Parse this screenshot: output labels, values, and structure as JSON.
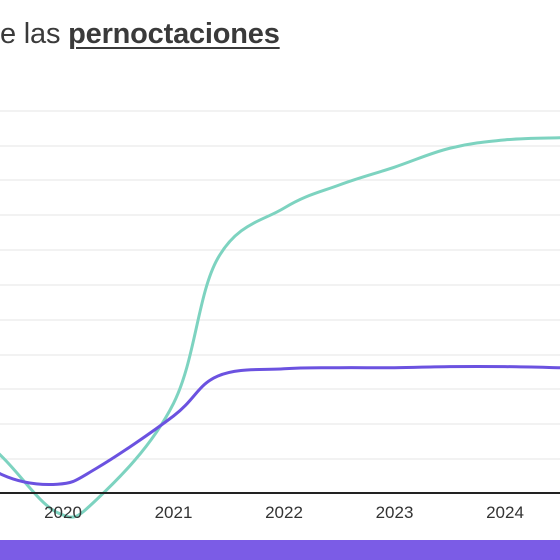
{
  "title": {
    "prefix": "e las ",
    "highlight": "pernoctaciones "
  },
  "colors": {
    "background": "#ffffff",
    "grid": "#e6e6e6",
    "axis": "#222222",
    "bottom_bar": "#7b5ce6"
  },
  "chart_data": {
    "type": "line",
    "title": "e las pernoctaciones",
    "x_ticks": [
      "2020",
      "2021",
      "2022",
      "2023",
      "2024"
    ],
    "grid": true,
    "series": [
      {
        "color": "#7dd3c0",
        "points": [
          {
            "x": 2019.0,
            "y": 0.46
          },
          {
            "x": 2019.45,
            "y": 0.01
          },
          {
            "x": 2019.95,
            "y": -0.52
          },
          {
            "x": 2020.3,
            "y": -0.4
          },
          {
            "x": 2021.0,
            "y": 0.52
          },
          {
            "x": 2021.4,
            "y": 1.9
          },
          {
            "x": 2022.0,
            "y": 2.38
          },
          {
            "x": 2022.5,
            "y": 2.6
          },
          {
            "x": 2023.0,
            "y": 2.77
          },
          {
            "x": 2023.5,
            "y": 2.95
          },
          {
            "x": 2024.0,
            "y": 3.03
          },
          {
            "x": 2024.5,
            "y": 3.05
          }
        ]
      },
      {
        "color": "#6b52e0",
        "points": [
          {
            "x": 2019.0,
            "y": 0.2
          },
          {
            "x": 2019.45,
            "y": -0.16
          },
          {
            "x": 2019.95,
            "y": -0.25
          },
          {
            "x": 2020.3,
            "y": -0.1
          },
          {
            "x": 2021.0,
            "y": 0.4
          },
          {
            "x": 2021.4,
            "y": 0.78
          },
          {
            "x": 2022.0,
            "y": 0.85
          },
          {
            "x": 2022.5,
            "y": 0.86
          },
          {
            "x": 2023.0,
            "y": 0.86
          },
          {
            "x": 2023.5,
            "y": 0.87
          },
          {
            "x": 2024.0,
            "y": 0.87
          },
          {
            "x": 2024.5,
            "y": 0.86
          }
        ]
      }
    ]
  }
}
